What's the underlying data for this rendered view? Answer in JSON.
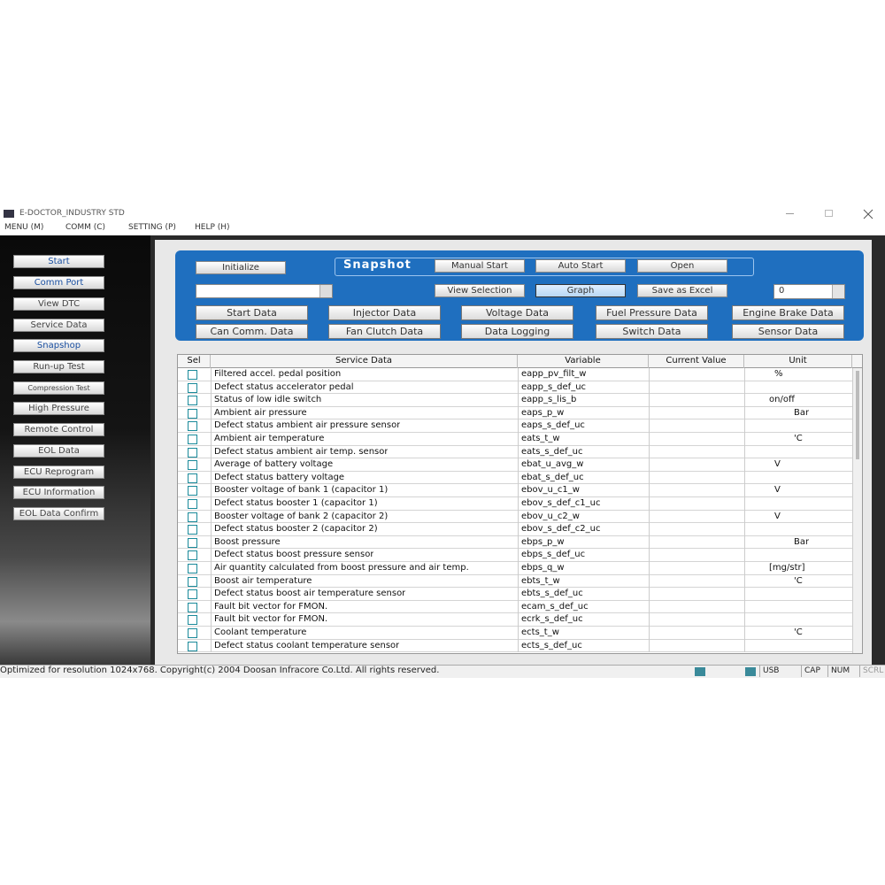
{
  "window": {
    "title": "E-DOCTOR_INDUSTRY STD"
  },
  "menu": [
    "MENU (M)",
    "COMM (C)",
    "SETTING (P)",
    "HELP (H)"
  ],
  "sidebar": [
    "Start",
    "Comm Port",
    "View DTC",
    "Service Data",
    "Snapshop",
    "Run-up Test",
    "Compression Test",
    "High Pressure",
    "Remote Control",
    "EOL Data",
    "ECU Reprogram",
    "ECU Information",
    "EOL Data Confirm"
  ],
  "toolbar": {
    "initialize": "Initialize",
    "title": "Snapshot",
    "manual_start": "Manual Start",
    "auto_start": "Auto Start",
    "open": "Open",
    "view_selection": "View Selection",
    "graph": "Graph",
    "save_as_excel": "Save as Excel",
    "counter": "0",
    "tabs": [
      "Start Data",
      "Injector Data",
      "Voltage Data",
      "Fuel Pressure Data",
      "Engine Brake Data",
      "Can Comm. Data",
      "Fan Clutch Data",
      "Data Logging",
      "Switch Data",
      "Sensor Data"
    ]
  },
  "table": {
    "columns": [
      "Sel",
      "Service Data",
      "Variable",
      "Current Value",
      "Unit"
    ],
    "rows": [
      {
        "name": "Filtered accel. pedal position",
        "variable": "eapp_pv_filt_w",
        "unit": "%"
      },
      {
        "name": "Defect status accelerator pedal",
        "variable": "eapp_s_def_uc"
      },
      {
        "name": "Status of low idle switch",
        "variable": "eapp_s_lis_b",
        "unit": "on/off"
      },
      {
        "name": "Ambient air pressure",
        "variable": "eaps_p_w",
        "unit": "Bar"
      },
      {
        "name": "Defect status ambient air pressure sensor",
        "variable": "eaps_s_def_uc"
      },
      {
        "name": "Ambient air temperature",
        "variable": "eats_t_w",
        "unit": "'C"
      },
      {
        "name": "Defect status ambient air temp.  sensor",
        "variable": "eats_s_def_uc"
      },
      {
        "name": "Average of battery voltage",
        "variable": "ebat_u_avg_w",
        "unit": "V"
      },
      {
        "name": "Defect status battery voltage",
        "variable": "ebat_s_def_uc"
      },
      {
        "name": "Booster voltage of bank 1 (capacitor 1)",
        "variable": "ebov_u_c1_w",
        "unit": "V"
      },
      {
        "name": "Defect status booster 1 (capacitor 1)",
        "variable": "ebov_s_def_c1_uc"
      },
      {
        "name": "Booster voltage of bank 2 (capacitor 2)",
        "variable": "ebov_u_c2_w",
        "unit": "V"
      },
      {
        "name": "Defect status booster 2 (capacitor 2)",
        "variable": "ebov_s_def_c2_uc"
      },
      {
        "name": "Boost pressure",
        "variable": "ebps_p_w",
        "unit": "Bar"
      },
      {
        "name": "Defect status boost pressure sensor",
        "variable": "ebps_s_def_uc"
      },
      {
        "name": "Air quantity calculated from boost pressure and air temp.",
        "variable": "ebps_q_w",
        "unit": "[mg/str]"
      },
      {
        "name": "Boost air temperature",
        "variable": "ebts_t_w",
        "unit": "'C"
      },
      {
        "name": "Defect status boost air temperature sensor",
        "variable": "ebts_s_def_uc"
      },
      {
        "name": "Fault bit vector for FMON.",
        "variable": "ecam_s_def_uc"
      },
      {
        "name": "Fault bit vector for FMON.",
        "variable": "ecrk_s_def_uc"
      },
      {
        "name": "Coolant temperature",
        "variable": "ects_t_w",
        "unit": "'C"
      },
      {
        "name": "Defect status coolant temperature sensor",
        "variable": "ects_s_def_uc"
      }
    ]
  },
  "status": {
    "text": "Optimized for resolution 1024x768. Copyright(c) 2004 Doosan Infracore Co.Ltd. All rights reserved.",
    "indicators": [
      "USB",
      "CAP",
      "NUM",
      "SCRL"
    ]
  }
}
